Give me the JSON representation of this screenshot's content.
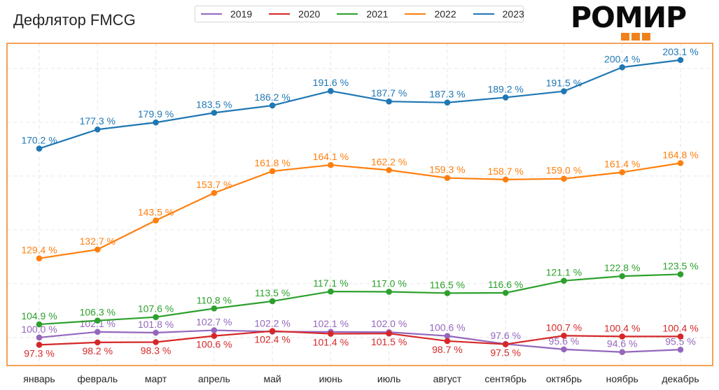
{
  "title": "Дефлятор FMCG",
  "logo": {
    "text": "РОМИР",
    "accent_color": "#f0821e"
  },
  "chart_data": {
    "type": "line",
    "title": "Дефлятор FMCG",
    "xlabel": "",
    "ylabel": "",
    "categories": [
      "январь",
      "февраль",
      "март",
      "апрель",
      "май",
      "июнь",
      "июль",
      "август",
      "сентябрь",
      "октябрь",
      "ноябрь",
      "декабрь"
    ],
    "ylim": [
      89.6,
      209.3
    ],
    "y_gridlines": [
      100,
      120,
      140,
      160,
      180,
      200
    ],
    "y_tick_labels_visible": false,
    "grid": true,
    "legend_position": "top-center",
    "value_suffix": " %",
    "frame_color": "#f0821e",
    "series": [
      {
        "name": "2019",
        "color": "#9467bd",
        "values": [
          100.0,
          102.1,
          101.8,
          102.7,
          102.2,
          102.1,
          102.0,
          100.6,
          97.6,
          95.6,
          94.6,
          95.5
        ]
      },
      {
        "name": "2020",
        "color": "#d62728",
        "values": [
          97.3,
          98.2,
          98.3,
          100.6,
          102.4,
          101.4,
          101.5,
          98.7,
          97.5,
          100.7,
          100.4,
          100.4
        ]
      },
      {
        "name": "2021",
        "color": "#2ca02c",
        "values": [
          104.9,
          106.3,
          107.6,
          110.8,
          113.5,
          117.1,
          117.0,
          116.5,
          116.6,
          121.1,
          122.8,
          123.5
        ]
      },
      {
        "name": "2022",
        "color": "#ff7f0e",
        "values": [
          129.4,
          132.7,
          143.5,
          153.7,
          161.8,
          164.1,
          162.2,
          159.3,
          158.7,
          159.0,
          161.4,
          164.8
        ]
      },
      {
        "name": "2023",
        "color": "#1f77b4",
        "values": [
          170.2,
          177.3,
          179.9,
          183.5,
          186.2,
          191.6,
          187.7,
          187.3,
          189.2,
          191.5,
          200.4,
          203.1
        ]
      }
    ],
    "label_positions": {
      "2019": [
        "above",
        "above",
        "above",
        "above",
        "above",
        "above",
        "above",
        "above",
        "above",
        "above",
        "above",
        "above"
      ],
      "2020": [
        "below",
        "below",
        "below",
        "below",
        "below",
        "below",
        "below",
        "below",
        "below",
        "above",
        "above",
        "above"
      ]
    }
  }
}
